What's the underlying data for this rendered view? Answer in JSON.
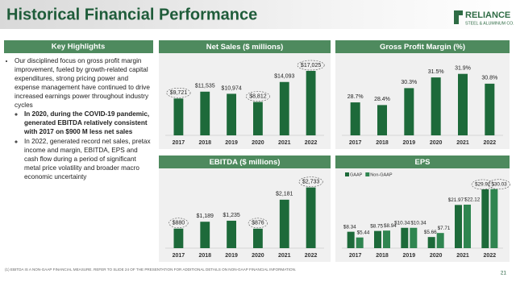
{
  "header": {
    "title": "Historical Financial Performance",
    "logo": {
      "name": "RELIANCE",
      "tagline": "STEEL & ALUMINUM CO."
    }
  },
  "highlights": {
    "title": "Key Highlights",
    "bullets": [
      {
        "text": "Our disciplined focus on gross profit margin improvement, fueled by growth-related capital expenditures, strong pricing power and expense management have continued to drive increased earnings power throughout industry cycles",
        "sub": [
          {
            "text": "In 2020, during the COVID-19 pandemic, generated EBITDA relatively consistent with 2017 on $900 M less net sales",
            "bold": true
          },
          {
            "text": "In 2022, generated record net sales, pretax income and margin, EBITDA, EPS and cash flow during a period of significant metal price volatility and broader macro economic uncertainty",
            "bold": false
          }
        ]
      }
    ]
  },
  "chart_data": [
    {
      "type": "bar",
      "title": "Net Sales ($ millions)",
      "categories": [
        "2017",
        "2018",
        "2019",
        "2020",
        "2021",
        "2022"
      ],
      "values": [
        9721,
        11535,
        10974,
        8812,
        14093,
        17025
      ],
      "value_labels": [
        "$9,721",
        "$11,535",
        "$10,974",
        "$8,812",
        "$14,093",
        "$17,025"
      ],
      "highlighted": [
        true,
        false,
        false,
        true,
        false,
        true
      ],
      "color": "#1d6a3a",
      "ylim": [
        0,
        20000
      ]
    },
    {
      "type": "bar",
      "title": "Gross Profit Margin (%)",
      "categories": [
        "2017",
        "2018",
        "2019",
        "2020",
        "2021",
        "2022"
      ],
      "values": [
        28.7,
        28.4,
        30.3,
        31.5,
        31.9,
        30.8
      ],
      "value_labels": [
        "28.7%",
        "28.4%",
        "30.3%",
        "31.5%",
        "31.9%",
        "30.8%"
      ],
      "highlighted": [
        false,
        false,
        false,
        false,
        false,
        false
      ],
      "color": "#1d6a3a",
      "ylim": [
        25,
        33.5
      ]
    },
    {
      "type": "bar",
      "title": "EBITDA ($ millions)",
      "categories": [
        "2017",
        "2018",
        "2019",
        "2020",
        "2021",
        "2022"
      ],
      "values": [
        880,
        1189,
        1235,
        876,
        2181,
        2733
      ],
      "value_labels": [
        "$880",
        "$1,189",
        "$1,235",
        "$876",
        "$2,181",
        "$2,733"
      ],
      "highlighted": [
        true,
        false,
        false,
        true,
        false,
        true
      ],
      "color": "#1d6a3a",
      "ylim": [
        0,
        3300
      ]
    },
    {
      "type": "grouped-bar",
      "title": "EPS",
      "categories": [
        "2017",
        "2018",
        "2019",
        "2020",
        "2021",
        "2022"
      ],
      "series": [
        {
          "name": "GAAP",
          "color": "#1d6a3a",
          "values": [
            8.34,
            8.75,
            10.34,
            5.66,
            21.97,
            29.92
          ],
          "value_labels": [
            "$8.34",
            "$8.75",
            "$10.34",
            "$5.66",
            "$21.97",
            "$29.92"
          ],
          "highlighted": [
            false,
            false,
            false,
            false,
            false,
            true
          ]
        },
        {
          "name": "Non-GAAP",
          "color": "#2f8550",
          "values": [
            5.44,
            8.94,
            10.34,
            7.71,
            22.12,
            30.03
          ],
          "value_labels": [
            "$5.44",
            "$8.94",
            "$10.34",
            "$7.71",
            "$22.12",
            "$30.03"
          ],
          "highlighted": [
            false,
            false,
            false,
            false,
            false,
            true
          ]
        }
      ],
      "ylim": [
        0,
        34
      ]
    }
  ],
  "footnote": "(1)   EBITDA IS A NON-GAAP FINANCIAL MEASURE. REFER TO SLIDE 24 OF THE PRESENTATION FOR ADDITIONAL DETAILS ON NON-GAAP FINANCIAL INFORMATION.",
  "page_number": 21
}
